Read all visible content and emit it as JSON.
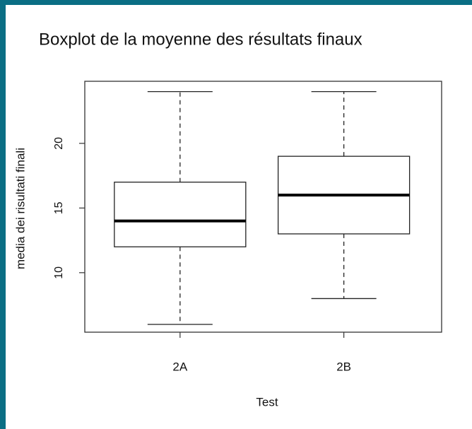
{
  "chart_data": {
    "type": "boxplot",
    "title": "Boxplot de la moyenne des résultats finaux",
    "x_label": "Test",
    "y_label": "media dei risultati finali",
    "categories": [
      "2A",
      "2B"
    ],
    "min": [
      6,
      8
    ],
    "q1": [
      12,
      13
    ],
    "median": [
      14,
      16
    ],
    "q3": [
      17,
      19
    ],
    "max": [
      24,
      24
    ],
    "ylim": [
      5.4,
      24.8
    ],
    "yticks": [
      10,
      15,
      20
    ],
    "color": "#ffffff"
  }
}
